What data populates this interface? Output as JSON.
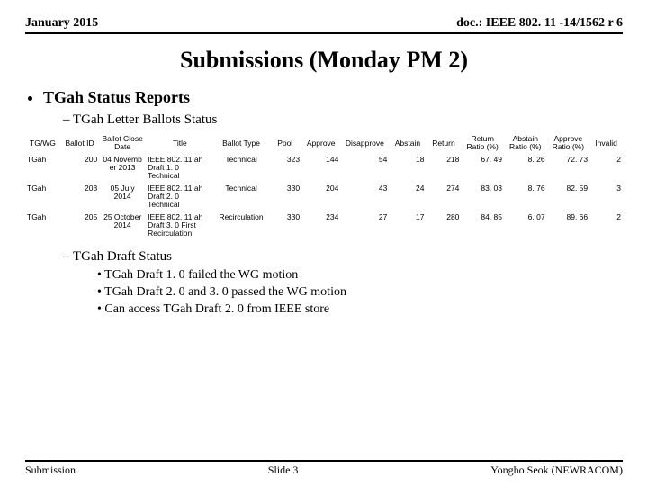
{
  "header": {
    "left": "January 2015",
    "right": "doc.: IEEE 802. 11 -14/1562 r 6"
  },
  "title": "Submissions (Monday PM 2)",
  "section1": "TGah Status Reports",
  "section1a": "TGah Letter Ballots Status",
  "section1b": "TGah Draft Status",
  "bullets1b": [
    "TGah Draft 1. 0 failed the WG motion",
    "TGah Draft 2. 0 and 3. 0  passed the WG motion",
    "Can access TGah Draft 2. 0 from IEEE store"
  ],
  "table": {
    "columns": [
      "TG/WG",
      "Ballot ID",
      "Ballot Close Date",
      "Title",
      "Ballot Type",
      "Pool",
      "Approve",
      "Disapprove",
      "Abstain",
      "Return",
      "Return Ratio (%)",
      "Abstain Ratio (%)",
      "Approve Ratio (%)",
      "Invalid"
    ],
    "widths": [
      "36px",
      "40px",
      "48px",
      "70px",
      "56px",
      "34px",
      "40px",
      "50px",
      "38px",
      "36px",
      "44px",
      "44px",
      "44px",
      "34px"
    ],
    "rows": [
      {
        "tgwg": "TGah",
        "id": "200",
        "close": "04 Novemb er 2013",
        "title": "IEEE 802. 11 ah Draft 1. 0 Technical",
        "type": "Technical",
        "pool": "323",
        "approve": "144",
        "disapprove": "54",
        "abstain": "18",
        "return": "218",
        "rr": "67. 49",
        "ar": "8. 26",
        "apr": "72. 73",
        "invalid": "2"
      },
      {
        "tgwg": "TGah",
        "id": "203",
        "close": "05 July 2014",
        "title": "IEEE 802. 11 ah Draft 2. 0 Technical",
        "type": "Technical",
        "pool": "330",
        "approve": "204",
        "disapprove": "43",
        "abstain": "24",
        "return": "274",
        "rr": "83. 03",
        "ar": "8. 76",
        "apr": "82. 59",
        "invalid": "3"
      },
      {
        "tgwg": "TGah",
        "id": "205",
        "close": "25 October 2014",
        "title": "IEEE 802. 11 ah Draft 3. 0 First Recirculation",
        "type": "Recirculation",
        "pool": "330",
        "approve": "234",
        "disapprove": "27",
        "abstain": "17",
        "return": "280",
        "rr": "84. 85",
        "ar": "6. 07",
        "apr": "89. 66",
        "invalid": "2"
      }
    ]
  },
  "footer": {
    "left": "Submission",
    "center": "Slide 3",
    "right": "Yongho Seok (NEWRACOM)"
  }
}
